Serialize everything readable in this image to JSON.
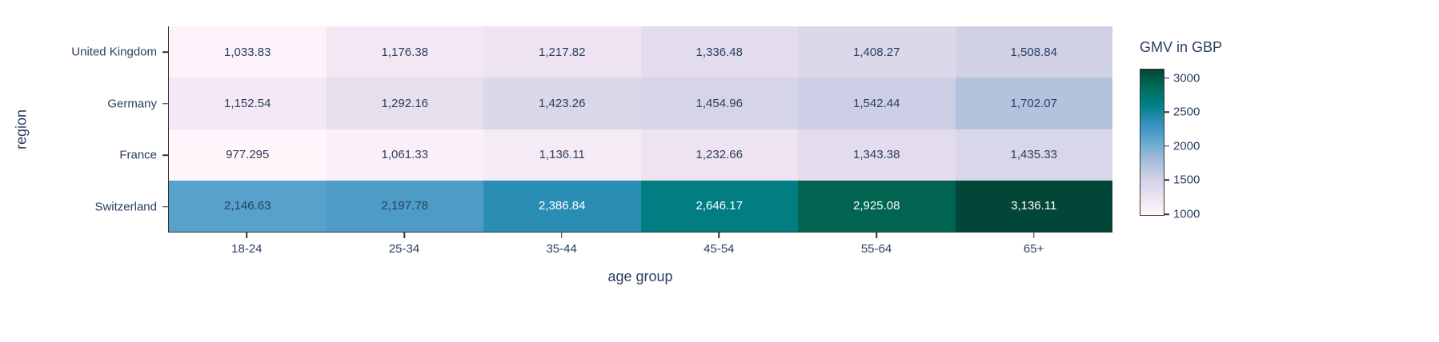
{
  "chart_data": {
    "type": "heatmap",
    "title": "",
    "xlabel": "age group",
    "ylabel": "region",
    "x_categories": [
      "18-24",
      "25-34",
      "35-44",
      "45-54",
      "55-64",
      "65+"
    ],
    "y_categories": [
      "United Kingdom",
      "Germany",
      "France",
      "Switzerland"
    ],
    "series": [
      {
        "name": "United Kingdom",
        "values": [
          1033.83,
          1176.38,
          1217.82,
          1336.48,
          1408.27,
          1508.84
        ]
      },
      {
        "name": "Germany",
        "values": [
          1152.54,
          1292.16,
          1423.26,
          1454.96,
          1542.44,
          1702.07
        ]
      },
      {
        "name": "France",
        "values": [
          977.295,
          1061.33,
          1136.11,
          1232.66,
          1343.38,
          1435.33
        ]
      },
      {
        "name": "Switzerland",
        "values": [
          2146.63,
          2197.78,
          2386.84,
          2646.17,
          2925.08,
          3136.11
        ]
      }
    ],
    "cells": [
      [
        {
          "label": "1,033.83",
          "color": "#fbf3f9",
          "text_color": "#2a3f5f"
        },
        {
          "label": "1,176.38",
          "color": "#f1e8f3",
          "text_color": "#2a3f5f"
        },
        {
          "label": "1,217.82",
          "color": "#eee4f1",
          "text_color": "#2a3f5f"
        },
        {
          "label": "1,336.48",
          "color": "#e3dced",
          "text_color": "#2a3f5f"
        },
        {
          "label": "1,408.27",
          "color": "#dbd8ea",
          "text_color": "#2a3f5f"
        },
        {
          "label": "1,508.84",
          "color": "#d1d1e6",
          "text_color": "#2a3f5f"
        }
      ],
      [
        {
          "label": "1,152.54",
          "color": "#f3e9f4",
          "text_color": "#2a3f5f"
        },
        {
          "label": "1,292.16",
          "color": "#e7dfee",
          "text_color": "#2a3f5f"
        },
        {
          "label": "1,423.26",
          "color": "#dad7e9",
          "text_color": "#2a3f5f"
        },
        {
          "label": "1,454.96",
          "color": "#d6d5e8",
          "text_color": "#2a3f5f"
        },
        {
          "label": "1,542.44",
          "color": "#cccfe5",
          "text_color": "#2a3f5f"
        },
        {
          "label": "1,702.07",
          "color": "#b3c3de",
          "text_color": "#2a3f5f"
        }
      ],
      [
        {
          "label": "977.295",
          "color": "#fff7fb",
          "text_color": "#2a3f5f"
        },
        {
          "label": "1,061.33",
          "color": "#f9f0f8",
          "text_color": "#2a3f5f"
        },
        {
          "label": "1,136.11",
          "color": "#f4ebf4",
          "text_color": "#2a3f5f"
        },
        {
          "label": "1,232.66",
          "color": "#ede3f1",
          "text_color": "#2a3f5f"
        },
        {
          "label": "1,343.38",
          "color": "#e2dcec",
          "text_color": "#2a3f5f"
        },
        {
          "label": "1,435.33",
          "color": "#d8d6e9",
          "text_color": "#2a3f5f"
        }
      ],
      [
        {
          "label": "2,146.63",
          "color": "#57a1ca",
          "text_color": "#2a3f5f"
        },
        {
          "label": "2,197.78",
          "color": "#4d9cc7",
          "text_color": "#2a3f5f"
        },
        {
          "label": "2,386.84",
          "color": "#2a8db4",
          "text_color": "#ffffff"
        },
        {
          "label": "2,646.17",
          "color": "#027d81",
          "text_color": "#ffffff"
        },
        {
          "label": "2,925.08",
          "color": "#016451",
          "text_color": "#ffffff"
        },
        {
          "label": "3,136.11",
          "color": "#014636",
          "text_color": "#ffffff"
        }
      ]
    ],
    "colorbar": {
      "title": "GMV in GBP",
      "tick_labels": [
        "3000",
        "2500",
        "2000",
        "1500",
        "1000"
      ],
      "tick_values": [
        3000,
        2500,
        2000,
        1500,
        1000
      ],
      "min": 977.295,
      "max": 3136.11,
      "gradient_top_to_bottom": [
        "#014636",
        "#016c59",
        "#02818a",
        "#3690c0",
        "#67a9cf",
        "#a6bddb",
        "#d0d1e6",
        "#ece2f0",
        "#fff7fb"
      ]
    },
    "colormap": "PuBuGn",
    "axis_color": "#333333",
    "text_color": "#2a3f5f",
    "legend_position": "right",
    "grid": false
  }
}
